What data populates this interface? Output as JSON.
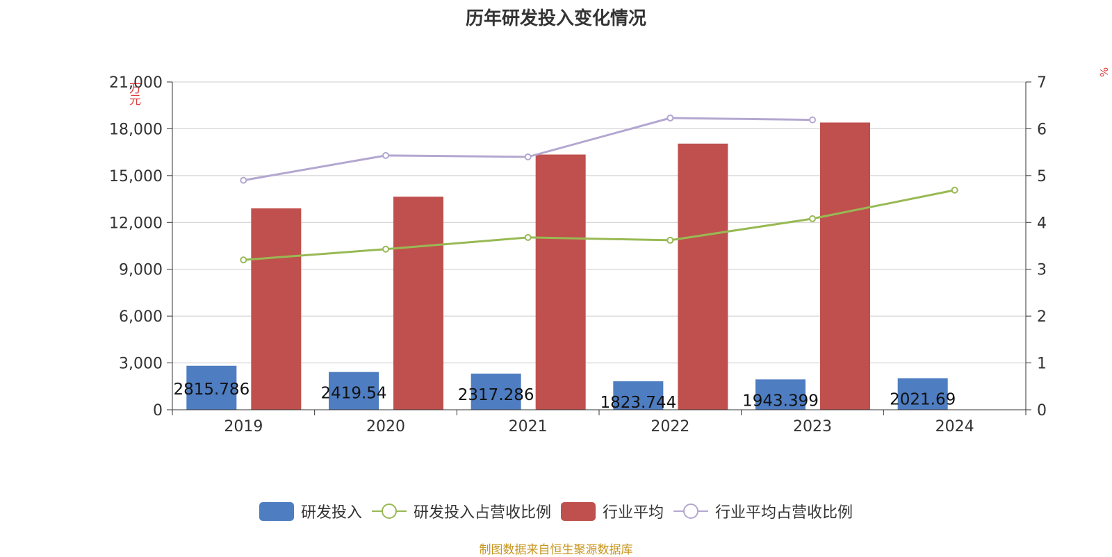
{
  "title": "历年研发投入变化情况",
  "source_note": "制图数据来自恒生聚源数据库",
  "chart_data": {
    "type": "bar",
    "title": "历年研发投入变化情况",
    "categories": [
      "2019",
      "2020",
      "2021",
      "2022",
      "2023",
      "2024"
    ],
    "y_left": {
      "unit": "万元",
      "ylim": [
        0,
        21000
      ],
      "ticks": [
        "0",
        "3,000",
        "6,000",
        "9,000",
        "12,000",
        "15,000",
        "18,000",
        "21,000"
      ]
    },
    "y_right": {
      "unit": "%",
      "ylim": [
        0,
        7
      ],
      "ticks": [
        "0",
        "1",
        "2",
        "3",
        "4",
        "5",
        "6",
        "7"
      ]
    },
    "grid": true,
    "legend_position": "bottom",
    "series": [
      {
        "name": "研发投入",
        "type": "bar",
        "axis": "left",
        "color": "#4e7dc1",
        "values": [
          2815.786,
          2419.54,
          2317.286,
          1823.744,
          1943.399,
          2021.69
        ],
        "labels": [
          "2815.786",
          "2419.54",
          "2317.286",
          "1823.744",
          "1943.399",
          "2021.69"
        ]
      },
      {
        "name": "研发投入占营收比例",
        "type": "line",
        "axis": "right",
        "color": "#98b954",
        "values": [
          3.2,
          3.43,
          3.68,
          3.62,
          4.08,
          4.69
        ]
      },
      {
        "name": "行业平均",
        "type": "bar",
        "axis": "left",
        "color": "#c0504d",
        "values": [
          12900,
          13650,
          16350,
          17050,
          18400,
          null
        ]
      },
      {
        "name": "行业平均占营收比例",
        "type": "line",
        "axis": "right",
        "color": "#b3a7d0",
        "values": [
          4.9,
          5.43,
          5.4,
          6.23,
          6.19,
          null
        ]
      }
    ]
  }
}
